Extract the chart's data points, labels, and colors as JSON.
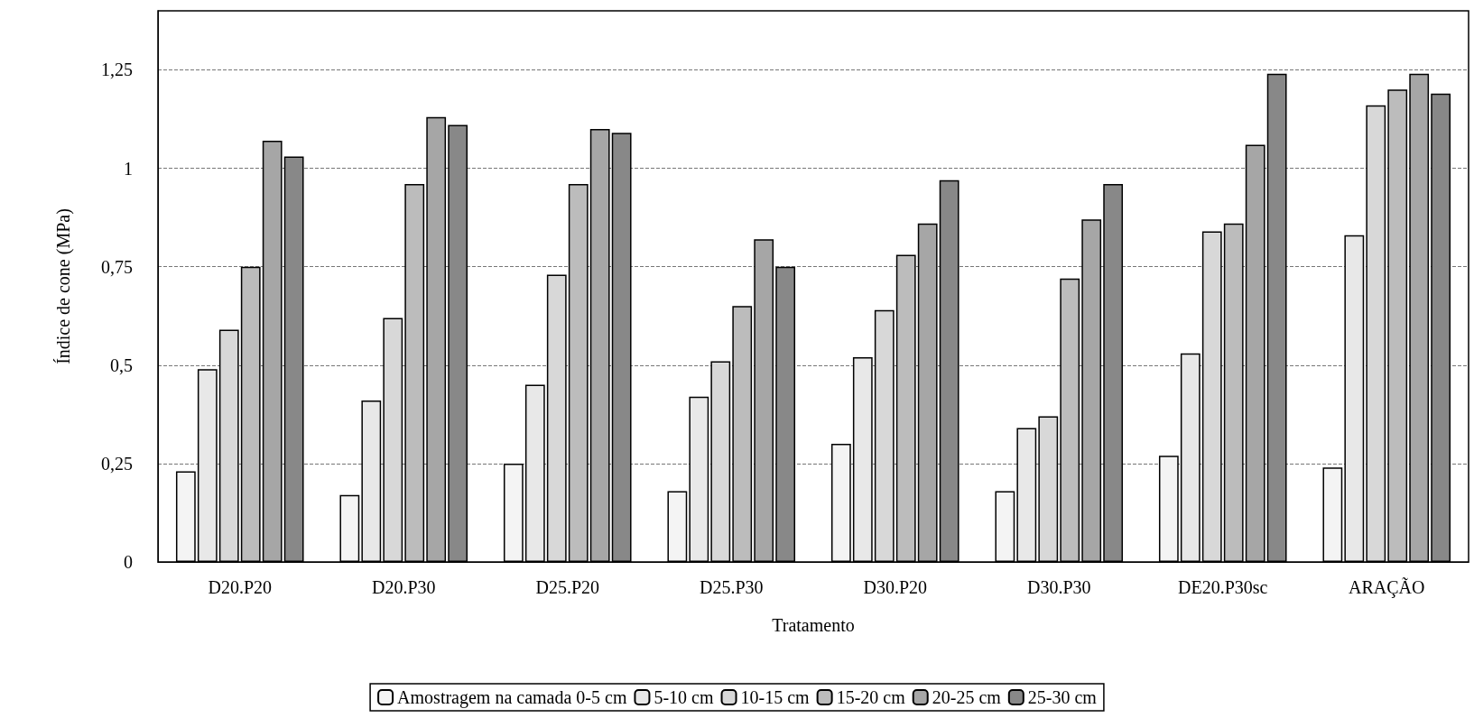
{
  "chart_data": {
    "type": "bar",
    "xlabel": "Tratamento",
    "ylabel": "Índice de cone (MPa)",
    "categories": [
      "D20.P20",
      "D20.P30",
      "D25.P20",
      "D25.P30",
      "D30.P20",
      "D30.P30",
      "DE20.P30sc",
      "ARAÇÃO"
    ],
    "series": [
      {
        "name": "Amostragem na camada 0-5 cm",
        "color": "#f4f4f4",
        "values": [
          0.23,
          0.17,
          0.25,
          0.18,
          0.3,
          0.18,
          0.27,
          0.24
        ]
      },
      {
        "name": "5-10 cm",
        "color": "#e8e8e8",
        "values": [
          0.49,
          0.41,
          0.45,
          0.42,
          0.52,
          0.34,
          0.53,
          0.83
        ]
      },
      {
        "name": "10-15 cm",
        "color": "#d8d8d8",
        "values": [
          0.59,
          0.62,
          0.73,
          0.51,
          0.64,
          0.37,
          0.84,
          1.16
        ]
      },
      {
        "name": "15-20 cm",
        "color": "#bcbcbc",
        "values": [
          0.75,
          0.96,
          0.96,
          0.65,
          0.78,
          0.72,
          0.86,
          1.2
        ]
      },
      {
        "name": "20-25 cm",
        "color": "#a6a6a6",
        "values": [
          1.07,
          1.13,
          1.1,
          0.82,
          0.86,
          0.87,
          1.06,
          1.24
        ]
      },
      {
        "name": "25-30 cm",
        "color": "#888888",
        "values": [
          1.03,
          1.11,
          1.09,
          0.75,
          0.97,
          0.96,
          1.24,
          1.19
        ]
      }
    ],
    "ylim": [
      0,
      1.4
    ],
    "yticks": [
      {
        "value": 0,
        "label": "0"
      },
      {
        "value": 0.25,
        "label": "0,25"
      },
      {
        "value": 0.5,
        "label": "0,5"
      },
      {
        "value": 0.75,
        "label": "0,75"
      },
      {
        "value": 1,
        "label": "1"
      },
      {
        "value": 1.25,
        "label": "1,25"
      }
    ],
    "grid": "y",
    "legend": "bottom"
  }
}
